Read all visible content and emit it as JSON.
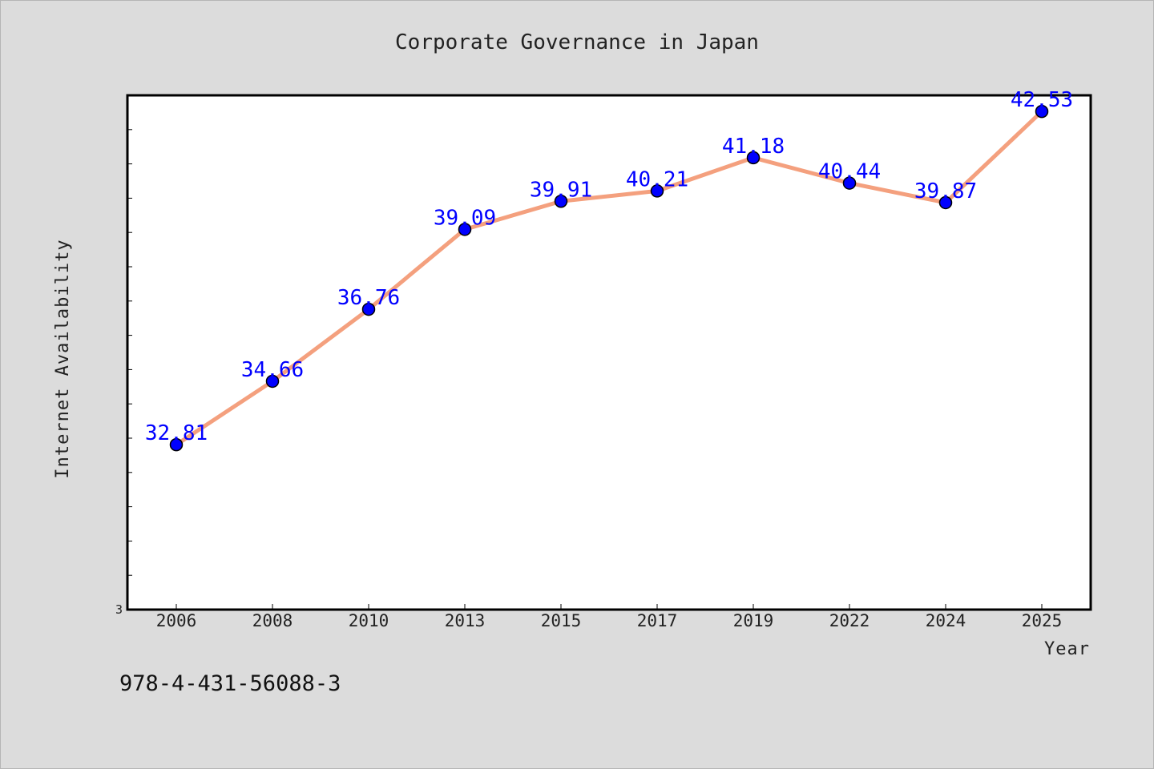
{
  "chart_data": {
    "type": "line",
    "title": "Corporate Governance in Japan",
    "xlabel": "Year",
    "ylabel": "Internet Availability",
    "categories": [
      "2006",
      "2008",
      "2010",
      "2013",
      "2015",
      "2017",
      "2019",
      "2022",
      "2024",
      "2025"
    ],
    "series": [
      {
        "values": [
          32.81,
          34.66,
          36.76,
          39.09,
          39.91,
          40.21,
          41.18,
          40.44,
          39.87,
          42.53
        ],
        "labels": [
          "32.81",
          "34.66",
          "36.76",
          "39.09",
          "39.91",
          "40.21",
          "41.18",
          "40.44",
          "39.87",
          "42.53"
        ]
      }
    ],
    "ylim": [
      28.0,
      43.0
    ],
    "y_tick_labels": [
      "3"
    ],
    "grid": false,
    "colors": {
      "line": "#f4a07e",
      "marker": "#0000ff",
      "data_label": "#0000ff"
    }
  },
  "footer": {
    "isbn": "978-4-431-56088-3"
  }
}
